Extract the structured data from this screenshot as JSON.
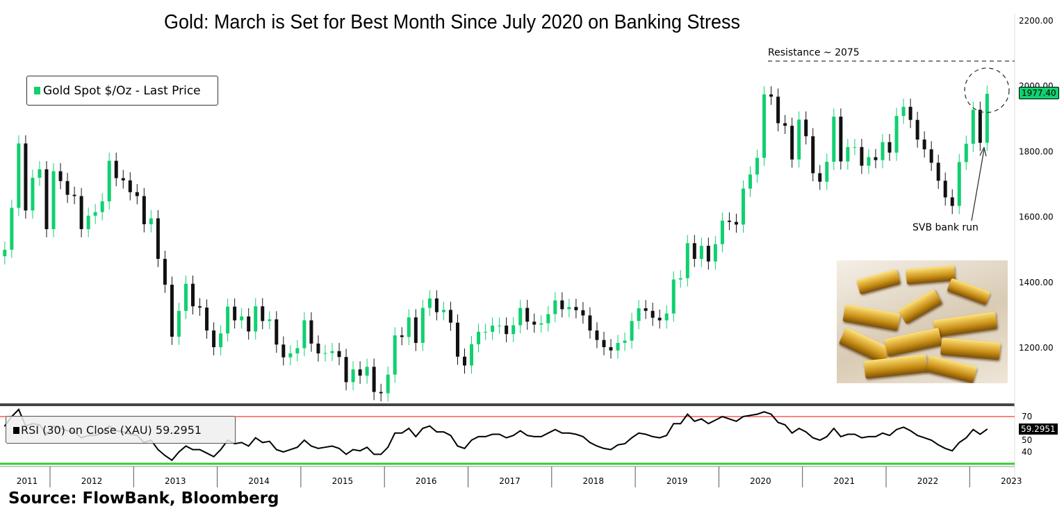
{
  "title": "Gold: March is Set for Best Month Since July 2020 on Banking Stress",
  "legend": {
    "price": "Gold Spot $/Oz - Last Price",
    "rsi": "RSI (30)  on Close (XAU) 59.2951"
  },
  "source": "Source:  FlowBank, Bloomberg",
  "annotations": {
    "resistance": "Resistance ~ 2075",
    "resistance_value": 2075,
    "svb": "SVB bank run"
  },
  "last_price_tag": "1977.40",
  "last_rsi_tag": "59.2951",
  "colors": {
    "up": "#10d070",
    "down": "#111111",
    "overbought": "#ff0000",
    "oversold": "#33cc33"
  },
  "chart_data": [
    {
      "type": "candlestick",
      "title": "Gold Spot $/Oz - Last Price",
      "frequency": "monthly (approx.)",
      "start": "2011-06",
      "ylim": [
        1040,
        2230
      ],
      "yticks": [
        "2200.00",
        "2000.00",
        "1800.00",
        "1600.00",
        "1400.00",
        "1200.00"
      ],
      "ytick_values": [
        2200,
        2000,
        1800,
        1600,
        1400,
        1200
      ],
      "xticks": [
        "2011",
        "2012",
        "2013",
        "2014",
        "2015",
        "2016",
        "2017",
        "2018",
        "2019",
        "2020",
        "2021",
        "2022",
        "2023"
      ],
      "close": [
        1500,
        1628,
        1825,
        1620,
        1720,
        1746,
        1563,
        1740,
        1710,
        1668,
        1664,
        1563,
        1604,
        1615,
        1648,
        1772,
        1719,
        1712,
        1676,
        1664,
        1578,
        1596,
        1472,
        1393,
        1234,
        1313,
        1396,
        1327,
        1323,
        1253,
        1202,
        1244,
        1326,
        1284,
        1296,
        1250,
        1327,
        1282,
        1287,
        1210,
        1171,
        1183,
        1199,
        1284,
        1213,
        1183,
        1184,
        1190,
        1172,
        1095,
        1134,
        1115,
        1142,
        1065,
        1061,
        1118,
        1238,
        1233,
        1293,
        1215,
        1322,
        1351,
        1309,
        1316,
        1277,
        1173,
        1146,
        1211,
        1249,
        1249,
        1268,
        1268,
        1242,
        1269,
        1322,
        1280,
        1271,
        1275,
        1303,
        1345,
        1318,
        1325,
        1315,
        1299,
        1253,
        1224,
        1202,
        1192,
        1215,
        1222,
        1282,
        1321,
        1313,
        1292,
        1284,
        1305,
        1409,
        1413,
        1520,
        1472,
        1512,
        1464,
        1517,
        1589,
        1585,
        1577,
        1687,
        1730,
        1781,
        1975,
        1968,
        1887,
        1879,
        1776,
        1898,
        1847,
        1734,
        1708,
        1769,
        1907,
        1770,
        1814,
        1814,
        1757,
        1783,
        1774,
        1829,
        1797,
        1909,
        1937,
        1897,
        1837,
        1807,
        1766,
        1711,
        1660,
        1634,
        1768,
        1824,
        1928,
        1827,
        1977
      ]
    },
    {
      "type": "line",
      "title": "RSI (30) on Close (XAU)",
      "ylim": [
        28,
        78
      ],
      "yticks": [
        "70",
        "50",
        "40"
      ],
      "ytick_values": [
        70,
        50,
        40
      ],
      "levels": [
        70,
        30
      ],
      "values": [
        62,
        70,
        76,
        62,
        64,
        63,
        55,
        62,
        60,
        58,
        57,
        52,
        54,
        54,
        56,
        62,
        58,
        57,
        55,
        54,
        48,
        50,
        42,
        37,
        33,
        40,
        45,
        42,
        42,
        39,
        36,
        42,
        50,
        47,
        48,
        45,
        52,
        48,
        49,
        42,
        40,
        42,
        44,
        50,
        45,
        43,
        44,
        45,
        43,
        38,
        42,
        41,
        44,
        38,
        38,
        44,
        56,
        56,
        60,
        53,
        60,
        62,
        57,
        57,
        54,
        45,
        43,
        50,
        53,
        53,
        55,
        55,
        52,
        54,
        58,
        54,
        53,
        53,
        56,
        59,
        56,
        56,
        55,
        53,
        48,
        45,
        43,
        42,
        46,
        47,
        52,
        56,
        55,
        53,
        52,
        54,
        64,
        64,
        72,
        66,
        68,
        64,
        67,
        70,
        68,
        66,
        70,
        71,
        72,
        74,
        72,
        65,
        63,
        56,
        60,
        57,
        52,
        50,
        53,
        60,
        53,
        55,
        55,
        52,
        53,
        53,
        56,
        54,
        59,
        61,
        58,
        54,
        52,
        50,
        46,
        43,
        41,
        48,
        52,
        59,
        55,
        59.3
      ]
    }
  ]
}
